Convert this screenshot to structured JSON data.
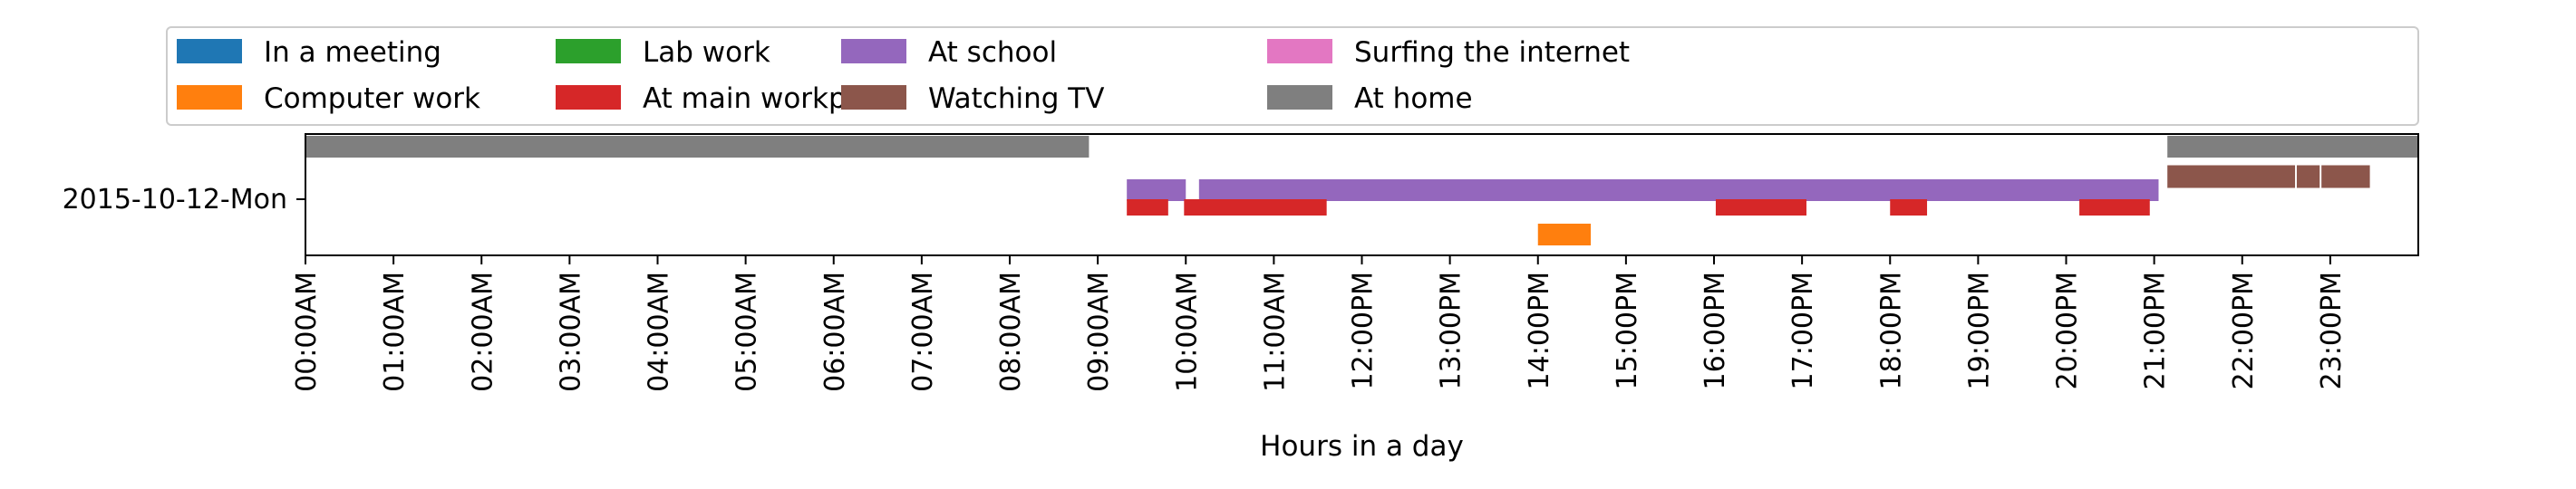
{
  "chart_data": {
    "type": "bar",
    "orientation": "horizontal-timeline",
    "title": "",
    "xlabel": "Hours in a day",
    "ylabel": "",
    "xlim": [
      0,
      24
    ],
    "x_ticks": [
      "00:00AM",
      "01:00AM",
      "02:00AM",
      "03:00AM",
      "04:00AM",
      "05:00AM",
      "06:00AM",
      "07:00AM",
      "08:00AM",
      "09:00AM",
      "10:00AM",
      "11:00AM",
      "12:00PM",
      "13:00PM",
      "14:00PM",
      "15:00PM",
      "16:00PM",
      "17:00PM",
      "18:00PM",
      "19:00PM",
      "20:00PM",
      "21:00PM",
      "22:00PM",
      "23:00PM"
    ],
    "categories": [
      "2015-10-12-Mon"
    ],
    "grid": false,
    "legend_position": "top",
    "series": [
      {
        "name": "In a meeting",
        "color": "#1f77b4",
        "intervals": []
      },
      {
        "name": "Computer work",
        "color": "#ff7f0e",
        "intervals": [
          [
            14.0,
            14.6
          ]
        ]
      },
      {
        "name": "Lab work",
        "color": "#2ca02c",
        "intervals": []
      },
      {
        "name": "At main workplace",
        "color": "#d62728",
        "intervals": [
          [
            9.33,
            9.8
          ],
          [
            9.98,
            11.6
          ],
          [
            16.02,
            17.05
          ],
          [
            18.0,
            18.42
          ],
          [
            20.15,
            20.95
          ]
        ]
      },
      {
        "name": "At school",
        "color": "#9467bd",
        "intervals": [
          [
            9.33,
            10.0
          ],
          [
            10.15,
            21.05
          ]
        ]
      },
      {
        "name": "Watching TV",
        "color": "#8c564b",
        "intervals": [
          [
            21.15,
            22.6
          ],
          [
            22.62,
            22.88
          ],
          [
            22.9,
            23.45
          ]
        ]
      },
      {
        "name": "Surfing the internet",
        "color": "#e377c2",
        "intervals": []
      },
      {
        "name": "At home",
        "color": "#7f7f7f",
        "intervals": [
          [
            0.0,
            8.9
          ],
          [
            21.15,
            24.0
          ]
        ]
      }
    ]
  }
}
